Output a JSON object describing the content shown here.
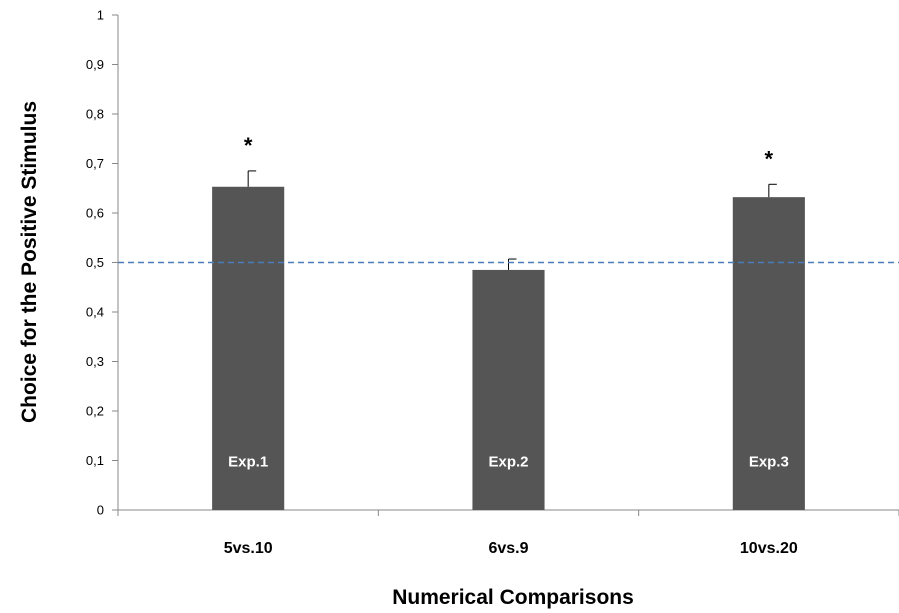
{
  "chart_data": {
    "type": "bar",
    "categories": [
      "5vs.10",
      "6vs.9",
      "10vs.20"
    ],
    "values": [
      0.653,
      0.485,
      0.632
    ],
    "error": [
      0.032,
      0.022,
      0.026
    ],
    "bar_labels": [
      "Exp.1",
      "Exp.2",
      "Exp.3"
    ],
    "significance": [
      "*",
      "",
      "*"
    ],
    "xlabel": "Numerical Comparisons",
    "ylabel": "Choice for  the Positive  Stimulus",
    "ylim": [
      0,
      1
    ],
    "yticks": [
      "0",
      "0,1",
      "0,2",
      "0,3",
      "0,4",
      "0,5",
      "0,6",
      "0,7",
      "0,8",
      "0,9",
      "1"
    ],
    "reference_line": 0.5,
    "grid": false,
    "legend": "none",
    "colors": {
      "bar": "#555555",
      "reference": "#4a7ebb",
      "axis": "#888888"
    }
  }
}
